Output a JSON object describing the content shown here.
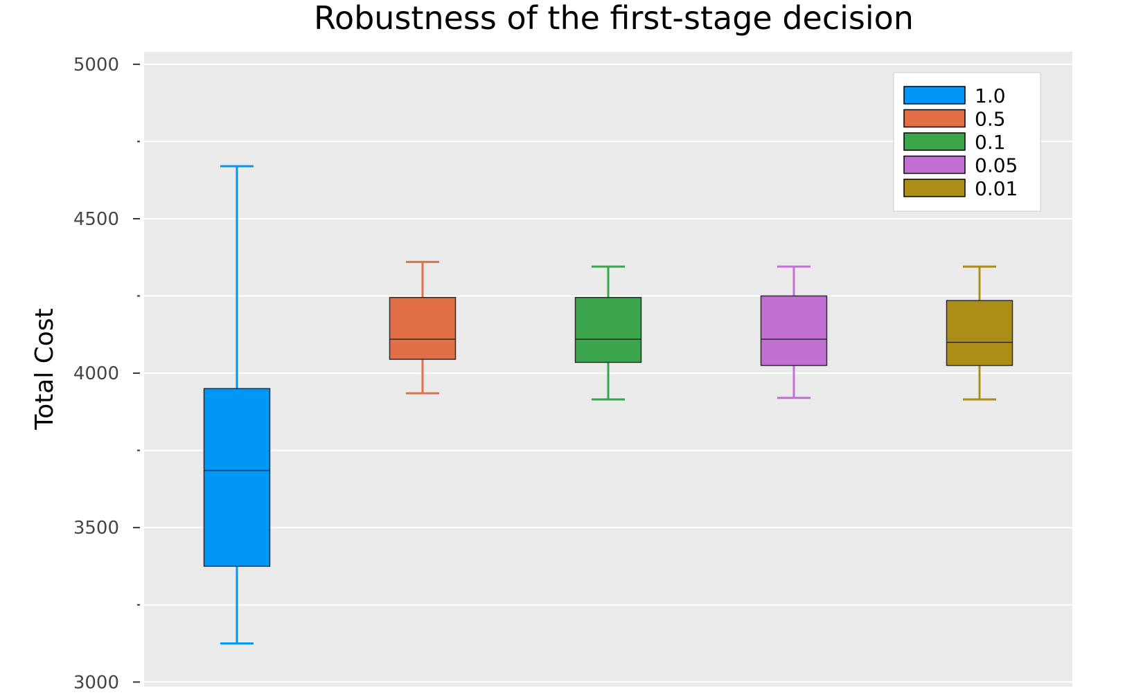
{
  "chart_data": {
    "type": "box",
    "title": "Robustness of the first-stage decision",
    "xlabel": "",
    "ylabel": "Total Cost",
    "ylim": [
      2985,
      5040
    ],
    "yticks": [
      3000,
      3500,
      4000,
      4500,
      5000
    ],
    "yticks_minor": [
      3250,
      3750,
      4250,
      4750
    ],
    "grid": true,
    "legend_position": "top-right",
    "series": [
      {
        "name": "1.0",
        "color": "#0097f7",
        "whisker_low": 3125,
        "q1": 3375,
        "median": 3685,
        "q3": 3950,
        "whisker_high": 4670
      },
      {
        "name": "0.5",
        "color": "#e26f46",
        "whisker_low": 3935,
        "q1": 4045,
        "median": 4110,
        "q3": 4245,
        "whisker_high": 4360
      },
      {
        "name": "0.1",
        "color": "#3ba54b",
        "whisker_low": 3915,
        "q1": 4035,
        "median": 4110,
        "q3": 4245,
        "whisker_high": 4345
      },
      {
        "name": "0.05",
        "color": "#c271d2",
        "whisker_low": 3920,
        "q1": 4025,
        "median": 4110,
        "q3": 4250,
        "whisker_high": 4345
      },
      {
        "name": "0.01",
        "color": "#ac8d18",
        "whisker_low": 3915,
        "q1": 4025,
        "median": 4100,
        "q3": 4235,
        "whisker_high": 4345
      }
    ]
  }
}
